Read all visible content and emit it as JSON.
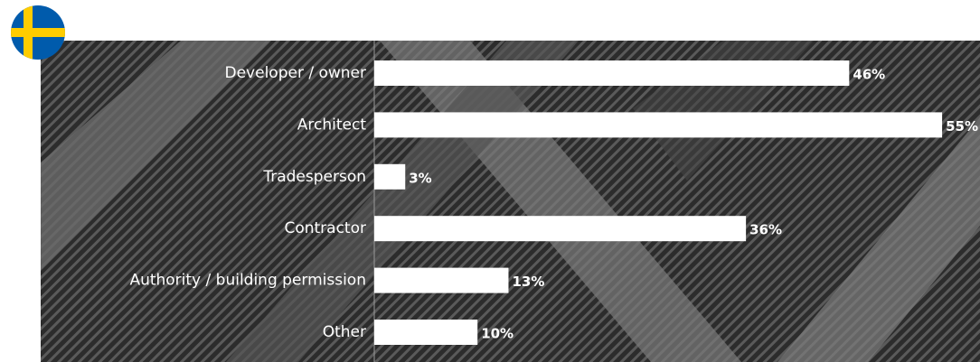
{
  "chart_data": {
    "type": "hbar",
    "categories": [
      "Developer / owner",
      "Architect",
      "Tradesperson",
      "Contractor",
      "Authority / building permission",
      "Other"
    ],
    "values": [
      46,
      55,
      3,
      36,
      13,
      10
    ],
    "value_labels": [
      "46%",
      "55%",
      "3%",
      "36%",
      "13%",
      "10%"
    ],
    "color": "#ffffff"
  }
}
